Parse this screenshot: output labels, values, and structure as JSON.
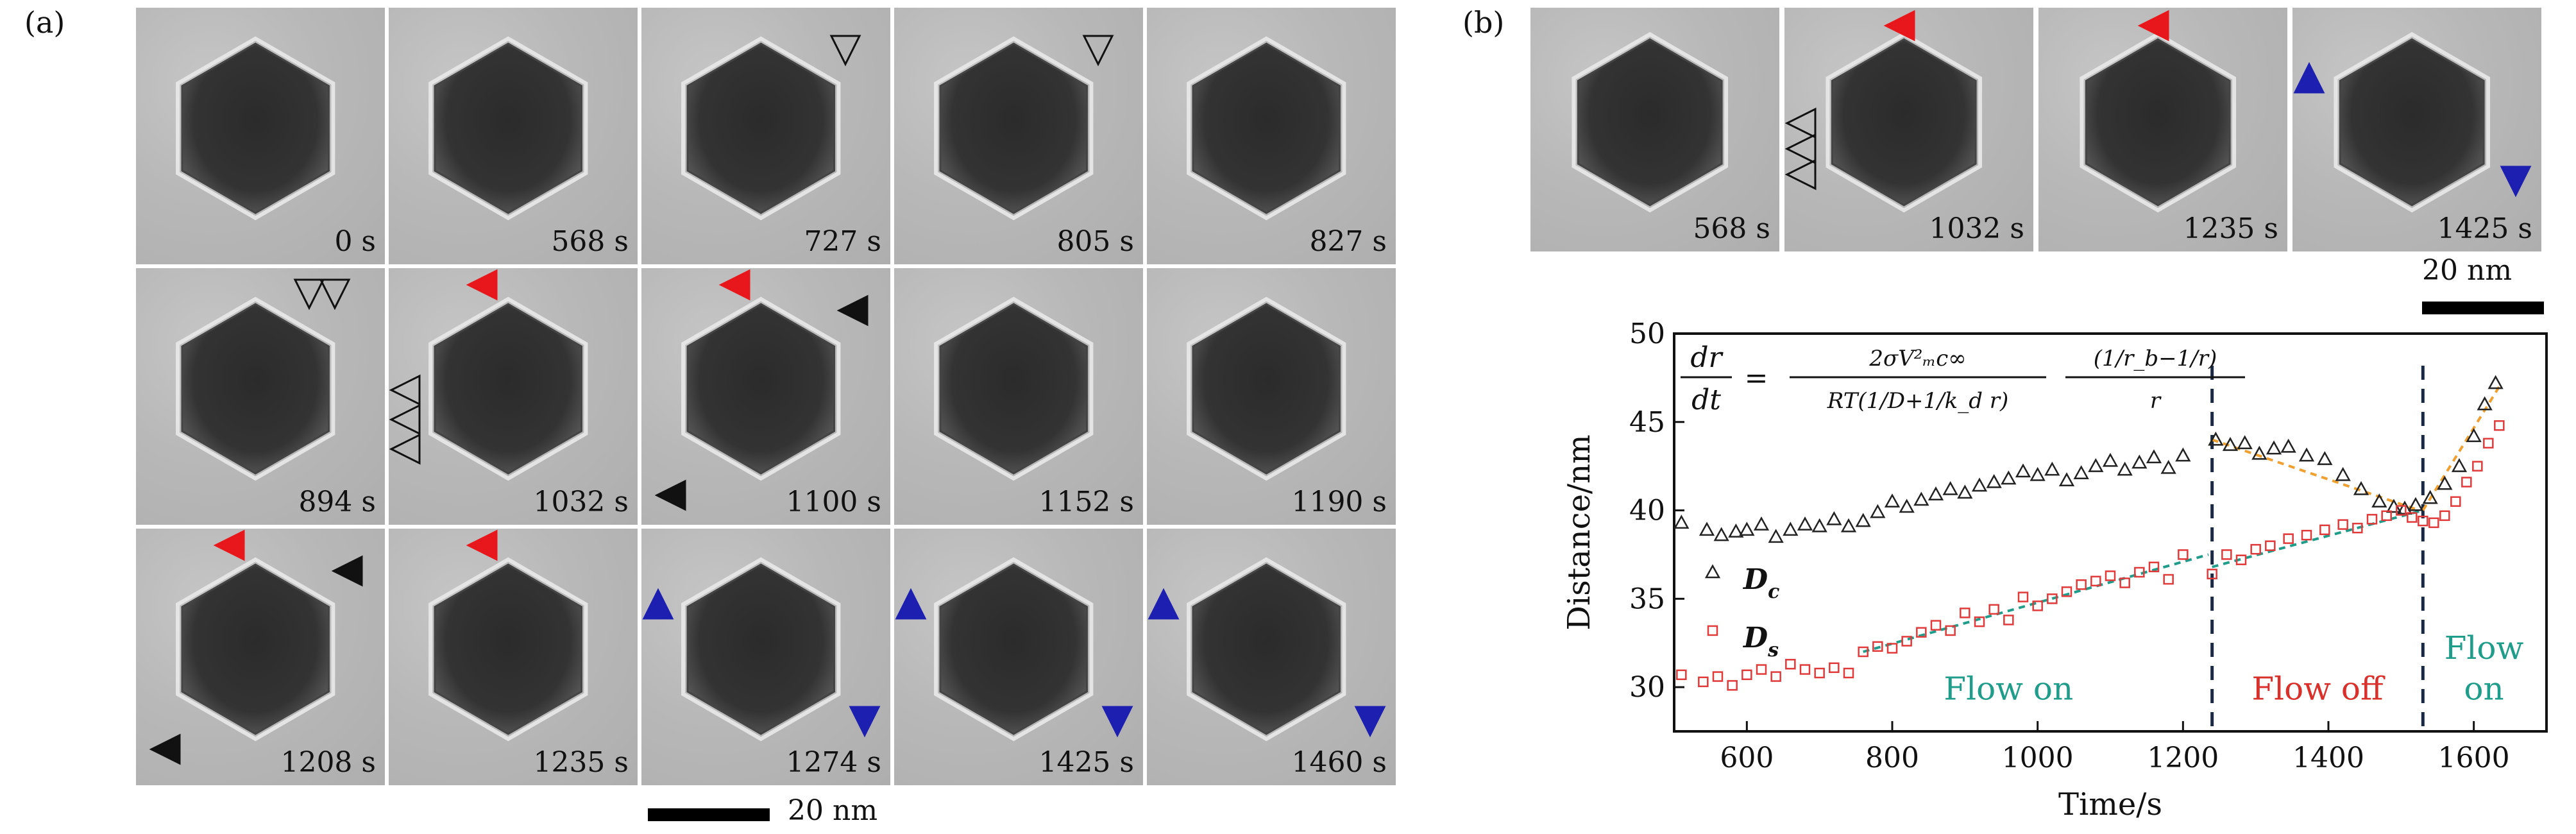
{
  "figure": {
    "panel_a_label": "(a)",
    "panel_b_label": "(b)",
    "panel_a_times": [
      "0 s",
      "568 s",
      "727 s",
      "805 s",
      "827 s",
      "894 s",
      "1032 s",
      "1100 s",
      "1152 s",
      "1190 s",
      "1208 s",
      "1235 s",
      "1274 s",
      "1425 s",
      "1460 s"
    ],
    "panel_b_times": [
      "568 s",
      "1032 s",
      "1235 s",
      "1425 s"
    ],
    "scale_bar_a": "20 nm",
    "scale_bar_b": "20 nm"
  },
  "colors": {
    "red_marker": "#e8171c",
    "blue_marker": "#1d1fb0",
    "black_marker": "#111111",
    "dc_series": "#222222",
    "ds_series": "#e03a3a",
    "fit_green": "#1f9d8a",
    "fit_orange": "#f0a030",
    "label_green": "#1f9d8a",
    "label_red": "#d9302b",
    "dashed_line": "#1b2a44"
  },
  "chart_data": {
    "type": "scatter",
    "xlabel": "Time/s",
    "ylabel": "Distance/nm",
    "xlim": [
      500,
      1700
    ],
    "ylim": [
      27.5,
      50
    ],
    "xticks": [
      600,
      800,
      1000,
      1200,
      1400,
      1600
    ],
    "yticks": [
      30,
      35,
      40,
      45,
      50
    ],
    "equation": {
      "lhs_num": "dr",
      "lhs_den": "dt",
      "eq": "=",
      "mid_num": "2σV²ₘc∞",
      "mid_den": "RT(1/D+1/k_d r)",
      "right_num": "(1/r_b−1/r)",
      "right_den": "r"
    },
    "annotations": {
      "flow_on_1": "Flow on",
      "flow_off": "Flow off",
      "flow_on_2_line1": "Flow",
      "flow_on_2_line2": "on"
    },
    "vlines": [
      1240,
      1530
    ],
    "series": [
      {
        "name": "D_c",
        "legend_label": "D",
        "legend_sub": "c",
        "marker": "triangle",
        "x": [
          510,
          545,
          565,
          585,
          600,
          620,
          640,
          660,
          680,
          700,
          720,
          740,
          760,
          780,
          800,
          820,
          840,
          860,
          880,
          900,
          920,
          940,
          960,
          980,
          1000,
          1020,
          1040,
          1060,
          1080,
          1100,
          1120,
          1140,
          1160,
          1180,
          1200,
          1245,
          1265,
          1285,
          1305,
          1325,
          1345,
          1370,
          1395,
          1420,
          1445,
          1470,
          1490,
          1505,
          1520,
          1540,
          1560,
          1580,
          1600,
          1615,
          1630
        ],
        "values": [
          39.3,
          38.9,
          38.6,
          38.8,
          38.9,
          39.2,
          38.5,
          38.9,
          39.2,
          39.1,
          39.5,
          39.1,
          39.4,
          39.9,
          40.5,
          40.2,
          40.6,
          40.9,
          41.2,
          41.0,
          41.4,
          41.6,
          41.8,
          42.2,
          42.0,
          42.3,
          41.7,
          42.1,
          42.5,
          42.8,
          42.3,
          42.7,
          43.0,
          42.4,
          43.1,
          44.0,
          43.7,
          43.8,
          43.2,
          43.5,
          43.6,
          43.1,
          42.9,
          42.0,
          41.2,
          40.5,
          40.2,
          40.1,
          40.3,
          40.7,
          41.5,
          42.5,
          44.2,
          46.0,
          47.2
        ]
      },
      {
        "name": "D_s",
        "legend_label": "D",
        "legend_sub": "s",
        "marker": "square",
        "x": [
          510,
          540,
          560,
          580,
          600,
          620,
          640,
          660,
          680,
          700,
          720,
          740,
          760,
          780,
          800,
          820,
          840,
          860,
          880,
          900,
          920,
          940,
          960,
          980,
          1000,
          1020,
          1040,
          1060,
          1080,
          1100,
          1120,
          1140,
          1160,
          1180,
          1200,
          1240,
          1260,
          1280,
          1300,
          1320,
          1345,
          1370,
          1395,
          1420,
          1440,
          1460,
          1480,
          1500,
          1515,
          1530,
          1545,
          1560,
          1575,
          1590,
          1605,
          1620,
          1635
        ],
        "values": [
          30.7,
          30.3,
          30.6,
          30.1,
          30.7,
          31.0,
          30.6,
          31.3,
          31.0,
          30.8,
          31.1,
          30.8,
          32.0,
          32.3,
          32.2,
          32.6,
          33.1,
          33.5,
          33.2,
          34.2,
          33.7,
          34.4,
          33.8,
          35.1,
          34.6,
          35.0,
          35.4,
          35.8,
          36.0,
          36.3,
          35.9,
          36.5,
          36.8,
          36.1,
          37.5,
          36.4,
          37.5,
          37.2,
          37.8,
          38.0,
          38.4,
          38.6,
          38.9,
          39.2,
          39.0,
          39.5,
          39.7,
          40.0,
          39.6,
          39.4,
          39.3,
          39.7,
          40.5,
          41.6,
          42.5,
          43.8,
          44.8
        ]
      }
    ],
    "fits": [
      {
        "name": "flow_on_fit",
        "color": "fit_green",
        "x": [
          760,
          1235
        ],
        "values": [
          32.0,
          37.5
        ]
      },
      {
        "name": "flow_off_fit",
        "color": "fit_orange",
        "x": [
          1240,
          1525
        ],
        "values": [
          44.0,
          40.0
        ]
      },
      {
        "name": "flow_on_2_fit_dc",
        "color": "fit_green",
        "x": [
          1240,
          1530
        ],
        "values": [
          36.8,
          40.0
        ]
      },
      {
        "name": "recovery_fit",
        "color": "fit_orange",
        "x": [
          1530,
          1635
        ],
        "values": [
          40.0,
          47.0
        ]
      }
    ]
  }
}
